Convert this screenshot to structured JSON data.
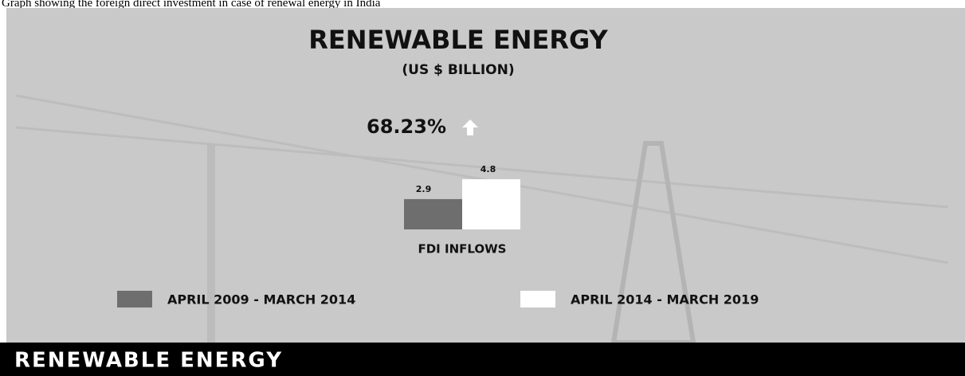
{
  "caption": "Graph showing the foreign direct investment in case of renewal energy in India",
  "chart_data": {
    "type": "bar",
    "title": "RENEWABLE ENERGY",
    "subtitle": "(US $ BILLION)",
    "annotation": "68.23%",
    "categories": [
      "FDI INFLOWS"
    ],
    "series": [
      {
        "name": "APRIL 2009 - MARCH 2014",
        "color": "#6e6e6e",
        "values": [
          2.9
        ]
      },
      {
        "name": "APRIL 2014 - MARCH 2019",
        "color": "#ffffff",
        "values": [
          4.8
        ]
      }
    ]
  },
  "footer_title": "RENEWABLE ENERGY"
}
